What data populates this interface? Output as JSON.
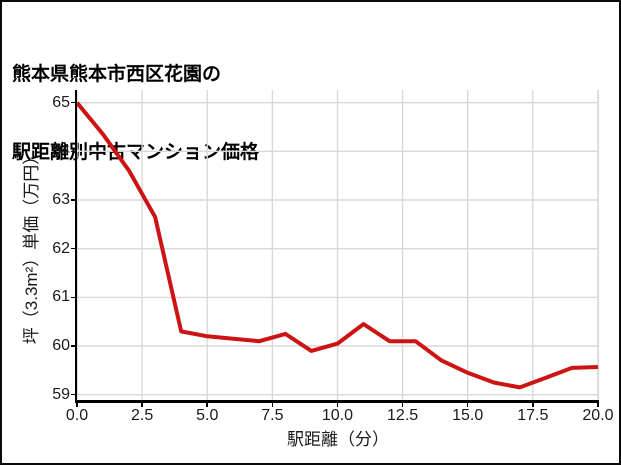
{
  "title": {
    "line1": "熊本県熊本市西区花園の",
    "line2": "駅距離別中古マンション価格"
  },
  "colors": {
    "line": "#cc1414",
    "grid": "#d8d8d8",
    "axis": "#000000",
    "background": "#ffffff",
    "text": "#1a1a1a"
  },
  "chart_data": {
    "type": "line",
    "title": "熊本県熊本市西区花園の駅距離別中古マンション価格",
    "xlabel": "駅距離（分）",
    "ylabel": "坪（3.3m²）単価（万円）",
    "x": [
      0,
      1,
      2,
      3,
      4,
      5,
      6,
      7,
      8,
      9,
      10,
      11,
      12,
      13,
      14,
      15,
      16,
      17,
      18,
      19,
      20
    ],
    "y": [
      65.0,
      64.35,
      63.6,
      62.65,
      60.3,
      60.2,
      60.15,
      60.1,
      60.25,
      59.9,
      60.05,
      60.45,
      60.1,
      60.1,
      59.7,
      59.45,
      59.25,
      59.15,
      59.35,
      59.55,
      59.57
    ],
    "xlim": [
      0,
      20.04
    ],
    "ylim": [
      58.85,
      65.26
    ],
    "xticks": {
      "values": [
        0,
        2.5,
        5,
        7.5,
        10,
        12.5,
        15,
        17.5,
        20
      ],
      "labels": [
        "0.0",
        "2.5",
        "5.0",
        "7.5",
        "10.0",
        "12.5",
        "15.0",
        "17.5",
        "20.0"
      ]
    },
    "yticks": {
      "values": [
        59,
        60,
        61,
        62,
        63,
        64,
        65
      ],
      "labels": [
        "59",
        "60",
        "61",
        "62",
        "63",
        "64",
        "65"
      ]
    },
    "grid": true,
    "legend": false,
    "line_color": "#cc1414",
    "line_width": 4
  }
}
